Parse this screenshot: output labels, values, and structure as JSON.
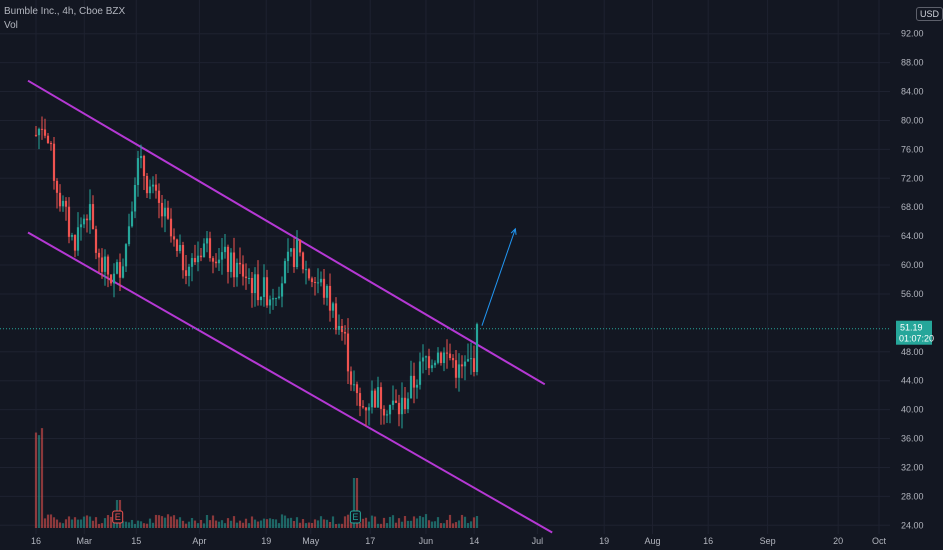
{
  "legend": {
    "symbol": "Bumble Inc., 4h, Cboe BZX",
    "indicator": "Vol"
  },
  "currency": "USD",
  "colors": {
    "background": "#131722",
    "grid": "#1e2230",
    "up": "#26a69a",
    "down": "#ef5350",
    "channel": "#b538d4",
    "arrow": "#2196f3",
    "price_line": "#26a69a",
    "earnings_badge_down": "#ef5350",
    "earnings_badge_up": "#26a69a"
  },
  "chart_data": {
    "type": "candlestick",
    "symbol": "Bumble Inc.",
    "interval": "4h",
    "exchange": "Cboe BZX",
    "y_ticks": [
      "92.00",
      "88.00",
      "84.00",
      "80.00",
      "76.00",
      "72.00",
      "68.00",
      "64.00",
      "60.00",
      "56.00",
      "48.00",
      "44.00",
      "40.00",
      "36.00",
      "32.00",
      "28.00",
      "24.00"
    ],
    "ylim": [
      23.0,
      96.0
    ],
    "x_ticks": [
      "16",
      "Mar",
      "15",
      "Apr",
      "19",
      "May",
      "17",
      "Jun",
      "14",
      "Jul",
      "19",
      "Aug",
      "16",
      "Sep",
      "20",
      "Oct"
    ],
    "current_price": "51.19",
    "countdown": "01:07:20",
    "price_path": [
      [
        "2021-02-16",
        78
      ],
      [
        "2021-02-18",
        80
      ],
      [
        "2021-02-22",
        70
      ],
      [
        "2021-02-26",
        63
      ],
      [
        "2021-03-02",
        68
      ],
      [
        "2021-03-05",
        60
      ],
      [
        "2021-03-09",
        58
      ],
      [
        "2021-03-12",
        62
      ],
      [
        "2021-03-15",
        74
      ],
      [
        "2021-03-17",
        73
      ],
      [
        "2021-03-19",
        70
      ],
      [
        "2021-03-23",
        66
      ],
      [
        "2021-03-26",
        61
      ],
      [
        "2021-03-30",
        60
      ],
      [
        "2021-04-02",
        63
      ],
      [
        "2021-04-06",
        62
      ],
      [
        "2021-04-09",
        60
      ],
      [
        "2021-04-13",
        59
      ],
      [
        "2021-04-16",
        57
      ],
      [
        "2021-04-20",
        56
      ],
      [
        "2021-04-23",
        58
      ],
      [
        "2021-04-27",
        62
      ],
      [
        "2021-04-30",
        59
      ],
      [
        "2021-05-04",
        57
      ],
      [
        "2021-05-06",
        55
      ],
      [
        "2021-05-10",
        50
      ],
      [
        "2021-05-12",
        44
      ],
      [
        "2021-05-14",
        40
      ],
      [
        "2021-05-18",
        42
      ],
      [
        "2021-05-21",
        41
      ],
      [
        "2021-05-25",
        40
      ],
      [
        "2021-05-27",
        42
      ],
      [
        "2021-06-01",
        47
      ],
      [
        "2021-06-04",
        48
      ],
      [
        "2021-06-08",
        47
      ],
      [
        "2021-06-10",
        45
      ],
      [
        "2021-06-14",
        47
      ],
      [
        "2021-06-15",
        51.19
      ]
    ],
    "channel_upper": [
      [
        "2021-02-16",
        85.5
      ],
      [
        "2021-07-03",
        43.5
      ]
    ],
    "channel_lower": [
      [
        "2021-02-16",
        64.5
      ],
      [
        "2021-07-05",
        23.0
      ]
    ],
    "projection_arrow": [
      [
        "2021-06-15",
        51.19
      ],
      [
        "2021-06-24",
        65.0
      ]
    ],
    "earnings_markers": [
      {
        "date": "2021-03-10",
        "label": "E"
      },
      {
        "date": "2021-05-13",
        "label": "E"
      }
    ]
  }
}
